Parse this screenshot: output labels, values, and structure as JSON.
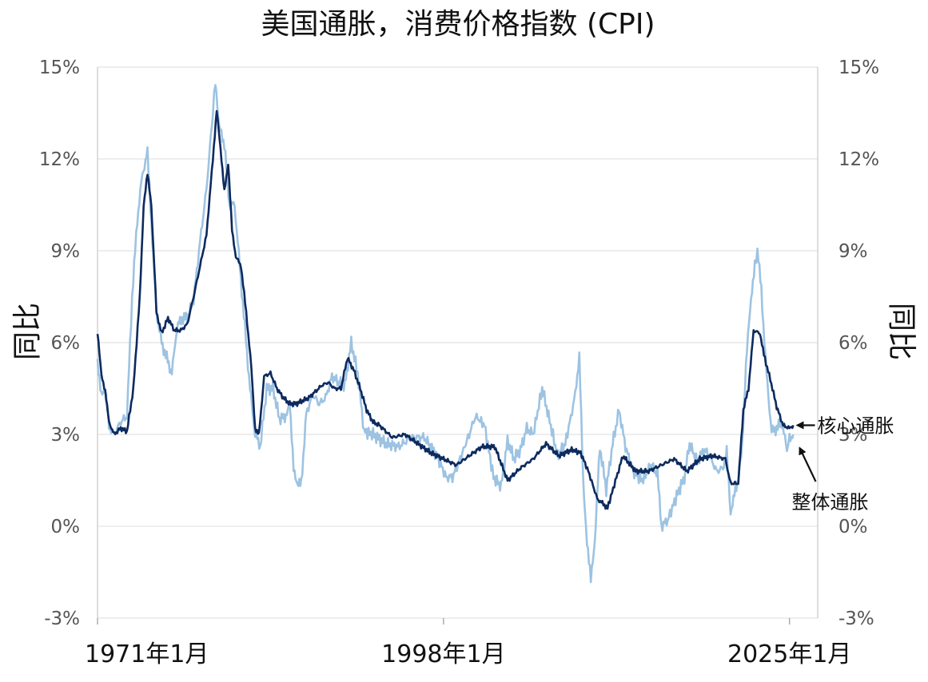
{
  "chart_data": {
    "type": "line",
    "title": "美国通胀，消费价格指数 (CPI)",
    "ylabel_left": "同比",
    "ylabel_right": "同比",
    "yticks": [
      "-3%",
      "0%",
      "3%",
      "6%",
      "9%",
      "12%",
      "15%"
    ],
    "ytick_values": [
      -3,
      0,
      3,
      6,
      9,
      12,
      15
    ],
    "ylim": [
      -3,
      15
    ],
    "xlim": [
      1971.0,
      2027.2
    ],
    "xticks": [
      "1971年1月",
      "1998年1月",
      "2025年1月"
    ],
    "xtick_values": [
      1971.0,
      1998.0,
      2025.0
    ],
    "grid": true,
    "colors": {
      "core": "#0d2a5e",
      "headline": "#9dc3e2",
      "grid": "#dddddd"
    },
    "annotations": [
      {
        "text": "核心通胀",
        "series": "core"
      },
      {
        "text": "整体通胀",
        "series": "headline"
      }
    ],
    "series": [
      {
        "name": "核心通胀",
        "x": [
          1971.0,
          1971.3,
          1971.6,
          1971.9,
          1972.3,
          1972.8,
          1973.3,
          1973.8,
          1974.3,
          1974.6,
          1974.9,
          1975.2,
          1975.6,
          1976.0,
          1976.5,
          1977.0,
          1977.5,
          1978.0,
          1978.5,
          1979.0,
          1979.5,
          1980.0,
          1980.3,
          1980.6,
          1980.9,
          1981.2,
          1981.5,
          1981.8,
          1982.2,
          1982.6,
          1983.0,
          1983.3,
          1983.6,
          1984.0,
          1984.5,
          1985.0,
          1985.5,
          1986.0,
          1986.5,
          1987.0,
          1987.5,
          1988.0,
          1988.5,
          1989.0,
          1989.5,
          1990.0,
          1990.5,
          1991.0,
          1991.5,
          1992.0,
          1992.5,
          1993.0,
          1994.0,
          1995.0,
          1996.0,
          1997.0,
          1998.0,
          1999.0,
          2000.0,
          2001.0,
          2002.0,
          2003.0,
          2004.0,
          2005.0,
          2006.0,
          2007.0,
          2008.0,
          2008.7,
          2009.3,
          2010.0,
          2010.8,
          2011.5,
          2012.0,
          2013.0,
          2014.0,
          2015.0,
          2016.0,
          2017.0,
          2018.0,
          2019.0,
          2020.0,
          2020.4,
          2021.0,
          2021.4,
          2021.8,
          2022.2,
          2022.7,
          2023.0,
          2023.5,
          2024.0,
          2024.5,
          2025.0,
          2025.3
        ],
        "values": [
          6.3,
          5.0,
          4.4,
          3.4,
          3.0,
          3.2,
          3.1,
          4.5,
          7.5,
          10.5,
          11.5,
          10.5,
          7.0,
          6.3,
          6.8,
          6.4,
          6.4,
          6.6,
          7.5,
          8.5,
          9.5,
          12.0,
          13.6,
          12.3,
          11.0,
          11.8,
          9.7,
          8.8,
          8.5,
          7.0,
          5.2,
          3.2,
          3.0,
          4.9,
          5.0,
          4.5,
          4.2,
          4.0,
          4.0,
          4.1,
          4.2,
          4.4,
          4.6,
          4.7,
          4.5,
          4.5,
          5.5,
          5.1,
          4.5,
          3.8,
          3.4,
          3.3,
          2.9,
          3.0,
          2.7,
          2.4,
          2.2,
          2.0,
          2.3,
          2.6,
          2.6,
          1.5,
          1.9,
          2.2,
          2.7,
          2.3,
          2.5,
          2.4,
          1.8,
          0.9,
          0.6,
          1.6,
          2.3,
          1.8,
          1.8,
          2.0,
          2.2,
          1.8,
          2.2,
          2.3,
          2.2,
          1.4,
          1.4,
          3.8,
          4.5,
          6.4,
          6.3,
          5.6,
          4.8,
          3.9,
          3.3,
          3.2,
          3.3
        ]
      },
      {
        "name": "整体通胀",
        "x": [
          1971.0,
          1971.3,
          1971.6,
          1971.9,
          1972.3,
          1972.8,
          1973.3,
          1973.7,
          1974.1,
          1974.5,
          1974.9,
          1975.2,
          1975.6,
          1976.0,
          1976.4,
          1976.8,
          1977.2,
          1977.6,
          1978.0,
          1978.5,
          1979.0,
          1979.5,
          1980.0,
          1980.2,
          1980.5,
          1980.9,
          1981.3,
          1981.7,
          1982.1,
          1982.5,
          1982.9,
          1983.3,
          1983.7,
          1984.2,
          1984.7,
          1985.2,
          1985.7,
          1986.0,
          1986.3,
          1986.6,
          1986.9,
          1987.3,
          1987.8,
          1988.3,
          1988.8,
          1989.3,
          1989.8,
          1990.3,
          1990.8,
          1991.3,
          1991.8,
          1992.5,
          1993.5,
          1994.5,
          1995.5,
          1996.5,
          1997.5,
          1998.2,
          1998.7,
          1999.3,
          2000.0,
          2000.5,
          2001.2,
          2001.9,
          2002.5,
          2003.0,
          2003.5,
          2004.0,
          2004.5,
          2005.0,
          2005.7,
          2006.2,
          2006.9,
          2007.5,
          2008.2,
          2008.6,
          2008.9,
          2009.2,
          2009.5,
          2009.8,
          2010.2,
          2010.7,
          2011.2,
          2011.7,
          2012.2,
          2012.8,
          2013.5,
          2014.2,
          2014.7,
          2015.0,
          2015.5,
          2016.2,
          2016.8,
          2017.2,
          2017.8,
          2018.3,
          2018.8,
          2019.3,
          2019.8,
          2020.1,
          2020.4,
          2020.7,
          2021.0,
          2021.3,
          2021.6,
          2022.0,
          2022.3,
          2022.5,
          2022.8,
          2023.2,
          2023.6,
          2024.0,
          2024.4,
          2024.8,
          2025.0,
          2025.3
        ],
        "values": [
          5.3,
          4.4,
          4.4,
          3.3,
          3.0,
          3.4,
          3.6,
          7.5,
          10.0,
          11.5,
          12.2,
          10.0,
          7.0,
          6.0,
          5.5,
          5.0,
          6.5,
          6.8,
          6.8,
          7.4,
          9.3,
          11.0,
          13.5,
          14.6,
          13.0,
          12.5,
          10.5,
          10.5,
          8.5,
          6.5,
          4.5,
          3.0,
          2.6,
          4.5,
          4.5,
          3.5,
          3.6,
          3.9,
          2.0,
          1.3,
          1.4,
          3.7,
          4.3,
          4.0,
          4.2,
          4.9,
          4.7,
          4.6,
          6.0,
          5.0,
          3.1,
          3.0,
          2.7,
          2.6,
          2.9,
          2.9,
          2.3,
          1.6,
          1.6,
          2.2,
          3.0,
          3.6,
          3.3,
          1.6,
          1.3,
          2.8,
          2.2,
          2.5,
          3.2,
          3.0,
          4.5,
          3.6,
          2.3,
          2.7,
          4.1,
          5.5,
          1.5,
          -0.5,
          -1.8,
          -0.5,
          2.6,
          1.2,
          2.7,
          3.8,
          2.6,
          1.8,
          1.5,
          2.0,
          1.7,
          0.0,
          0.2,
          1.0,
          1.6,
          2.7,
          2.1,
          2.5,
          2.3,
          1.8,
          1.9,
          2.5,
          0.3,
          1.2,
          1.4,
          2.6,
          5.3,
          7.5,
          8.5,
          9.0,
          7.7,
          5.0,
          3.1,
          3.2,
          3.4,
          2.5,
          2.9,
          3.0
        ]
      }
    ]
  }
}
